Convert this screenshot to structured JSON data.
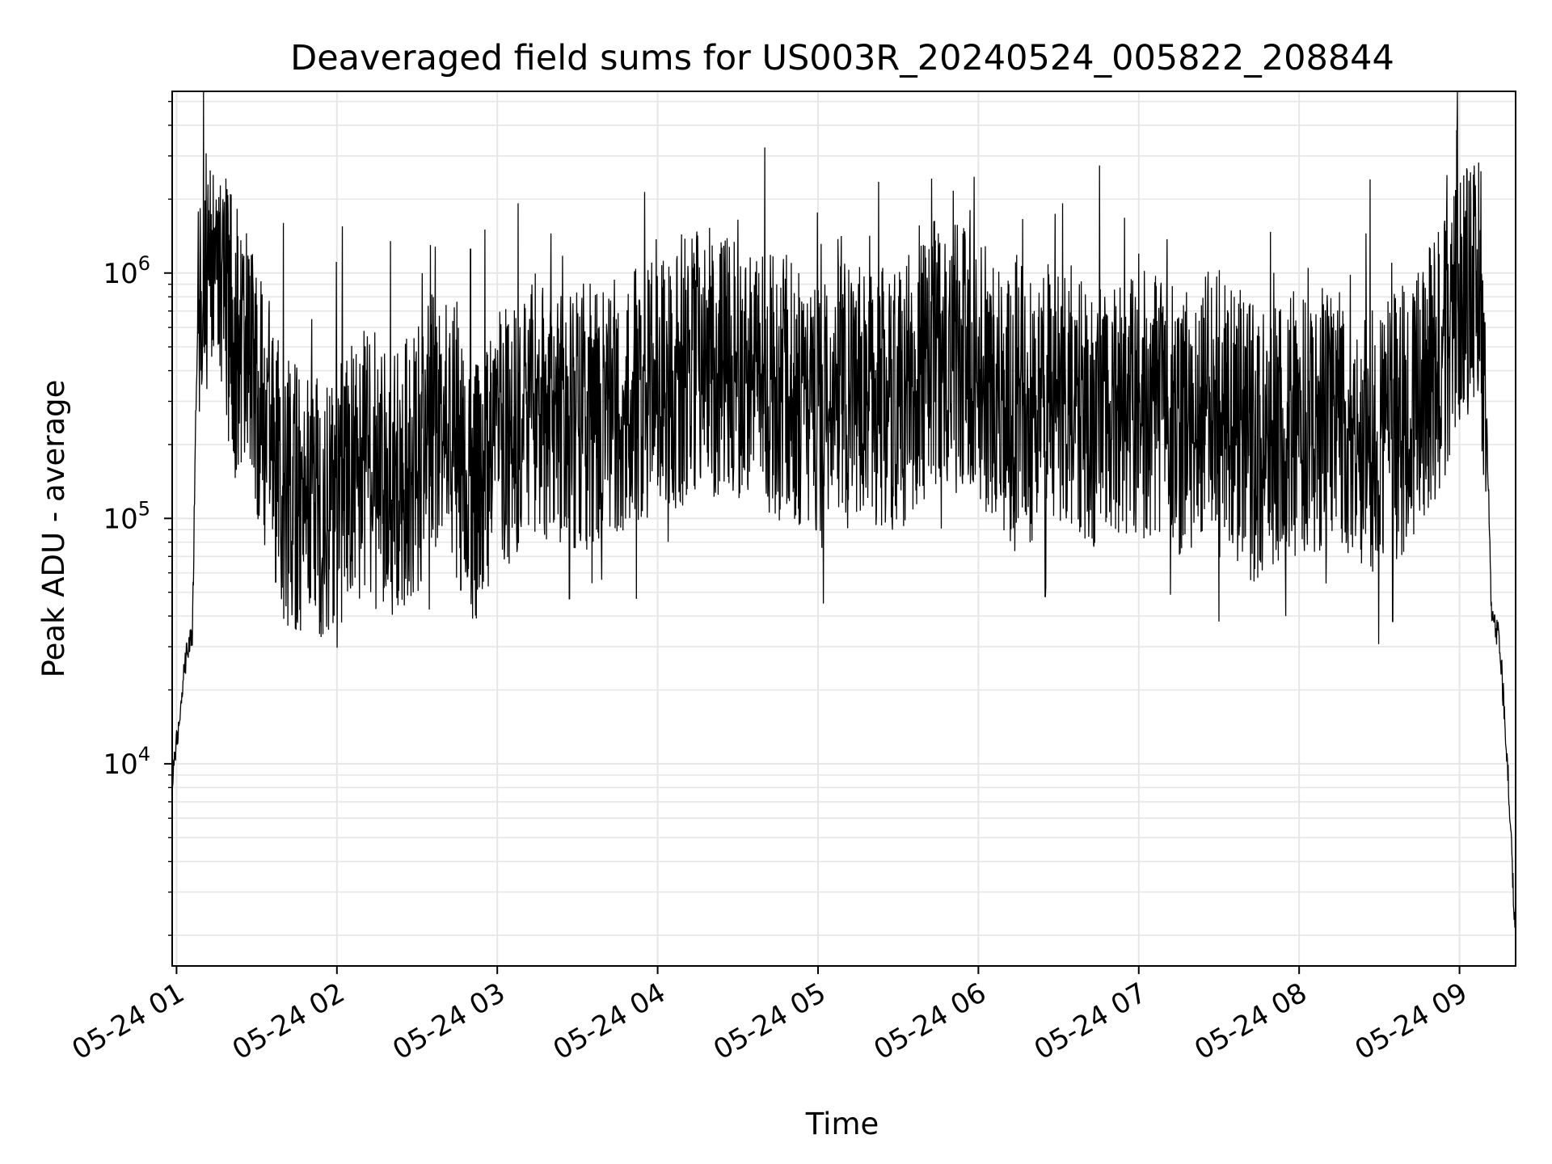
{
  "chart_data": {
    "type": "line",
    "title": "Deaveraged field sums for US003R_20240524_005822_208844",
    "xlabel": "Time",
    "ylabel": "Peak ADU - average",
    "yscale": "log",
    "xlim": [
      "2024-05-24 00:58:22",
      "2024-05-24 09:21:00"
    ],
    "ylim": [
      1500,
      5500000
    ],
    "x_ticks": [
      "05-24 01",
      "05-24 02",
      "05-24 03",
      "05-24 04",
      "05-24 05",
      "05-24 06",
      "05-24 07",
      "05-24 08",
      "05-24 09"
    ],
    "y_ticks": [
      {
        "base": "10",
        "exp": "4",
        "value": 10000
      },
      {
        "base": "10",
        "exp": "5",
        "value": 100000
      },
      {
        "base": "10",
        "exp": "6",
        "value": 1000000
      }
    ],
    "grid": true,
    "line_color": "#000000",
    "grid_color": "#e6e6e6",
    "series": [
      {
        "points": [
          [
            "2024-05-24 00:58:22",
            9000
          ],
          [
            "2024-05-24 01:00:00",
            12000
          ],
          [
            "2024-05-24 01:02:00",
            20000
          ],
          [
            "2024-05-24 01:04:00",
            30000
          ],
          [
            "2024-05-24 01:06:00",
            35000
          ],
          [
            "2024-05-24 01:07:00",
            200000
          ],
          [
            "2024-05-24 01:08:00",
            700000
          ],
          [
            "2024-05-24 01:10:00",
            1200000
          ],
          [
            "2024-05-24 01:15:00",
            800000
          ],
          [
            "2024-05-24 01:20:00",
            650000
          ],
          [
            "2024-05-24 01:25:00",
            450000
          ],
          [
            "2024-05-24 01:30:00",
            300000
          ],
          [
            "2024-05-24 01:35:00",
            220000
          ],
          [
            "2024-05-24 01:40:00",
            130000
          ],
          [
            "2024-05-24 01:50:00",
            110000
          ],
          [
            "2024-05-24 02:00:00",
            120000
          ],
          [
            "2024-05-24 02:10:00",
            170000
          ],
          [
            "2024-05-24 02:20:00",
            130000
          ],
          [
            "2024-05-24 02:30:00",
            170000
          ],
          [
            "2024-05-24 02:40:00",
            300000
          ],
          [
            "2024-05-24 02:50:00",
            120000
          ],
          [
            "2024-05-24 03:00:00",
            200000
          ],
          [
            "2024-05-24 03:15:00",
            280000
          ],
          [
            "2024-05-24 03:30:00",
            250000
          ],
          [
            "2024-05-24 03:45:00",
            300000
          ],
          [
            "2024-05-24 04:00:00",
            350000
          ],
          [
            "2024-05-24 04:15:00",
            420000
          ],
          [
            "2024-05-24 04:30:00",
            400000
          ],
          [
            "2024-05-24 04:45:00",
            350000
          ],
          [
            "2024-05-24 05:00:00",
            300000
          ],
          [
            "2024-05-24 05:15:00",
            320000
          ],
          [
            "2024-05-24 05:30:00",
            300000
          ],
          [
            "2024-05-24 05:45:00",
            500000
          ],
          [
            "2024-05-24 06:00:00",
            400000
          ],
          [
            "2024-05-24 06:15:00",
            250000
          ],
          [
            "2024-05-24 06:30:00",
            350000
          ],
          [
            "2024-05-24 06:45:00",
            250000
          ],
          [
            "2024-05-24 07:00:00",
            300000
          ],
          [
            "2024-05-24 07:15:00",
            250000
          ],
          [
            "2024-05-24 07:30:00",
            300000
          ],
          [
            "2024-05-24 07:45:00",
            200000
          ],
          [
            "2024-05-24 08:00:00",
            250000
          ],
          [
            "2024-05-24 08:15:00",
            250000
          ],
          [
            "2024-05-24 08:30:00",
            200000
          ],
          [
            "2024-05-24 08:45:00",
            300000
          ],
          [
            "2024-05-24 08:55:00",
            500000
          ],
          [
            "2024-05-24 09:00:00",
            800000
          ],
          [
            "2024-05-24 09:05:00",
            900000
          ],
          [
            "2024-05-24 09:10:00",
            300000
          ],
          [
            "2024-05-24 09:12:00",
            40000
          ],
          [
            "2024-05-24 09:15:00",
            32000
          ],
          [
            "2024-05-24 09:18:00",
            10000
          ],
          [
            "2024-05-24 09:21:00",
            1800
          ]
        ],
        "peaks": [
          [
            "2024-05-24 01:12:00",
            1800000
          ],
          [
            "2024-05-24 01:40:00",
            1600000
          ],
          [
            "2024-05-24 02:02:00",
            1550000
          ],
          [
            "2024-05-24 02:20:00",
            1350000
          ],
          [
            "2024-05-24 02:35:00",
            1300000
          ],
          [
            "2024-05-24 02:50:00",
            1250000
          ],
          [
            "2024-05-24 04:30:00",
            1650000
          ],
          [
            "2024-05-24 05:45:00",
            1450000
          ],
          [
            "2024-05-24 07:00:00",
            1200000
          ],
          [
            "2024-05-24 08:25:00",
            1450000
          ],
          [
            "2024-05-24 08:59:00",
            3800000
          ],
          [
            "2024-05-24 09:08:00",
            2600000
          ]
        ],
        "troughs": [
          [
            "2024-05-24 01:37:00",
            55000
          ],
          [
            "2024-05-24 02:05:00",
            55000
          ],
          [
            "2024-05-24 03:27:00",
            47000
          ],
          [
            "2024-05-24 03:52:00",
            47000
          ],
          [
            "2024-05-24 05:02:00",
            45000
          ],
          [
            "2024-05-24 06:25:00",
            48000
          ],
          [
            "2024-05-24 07:30:00",
            38000
          ],
          [
            "2024-05-24 07:55:00",
            40000
          ],
          [
            "2024-05-24 08:35:00",
            38000
          ]
        ]
      }
    ]
  }
}
